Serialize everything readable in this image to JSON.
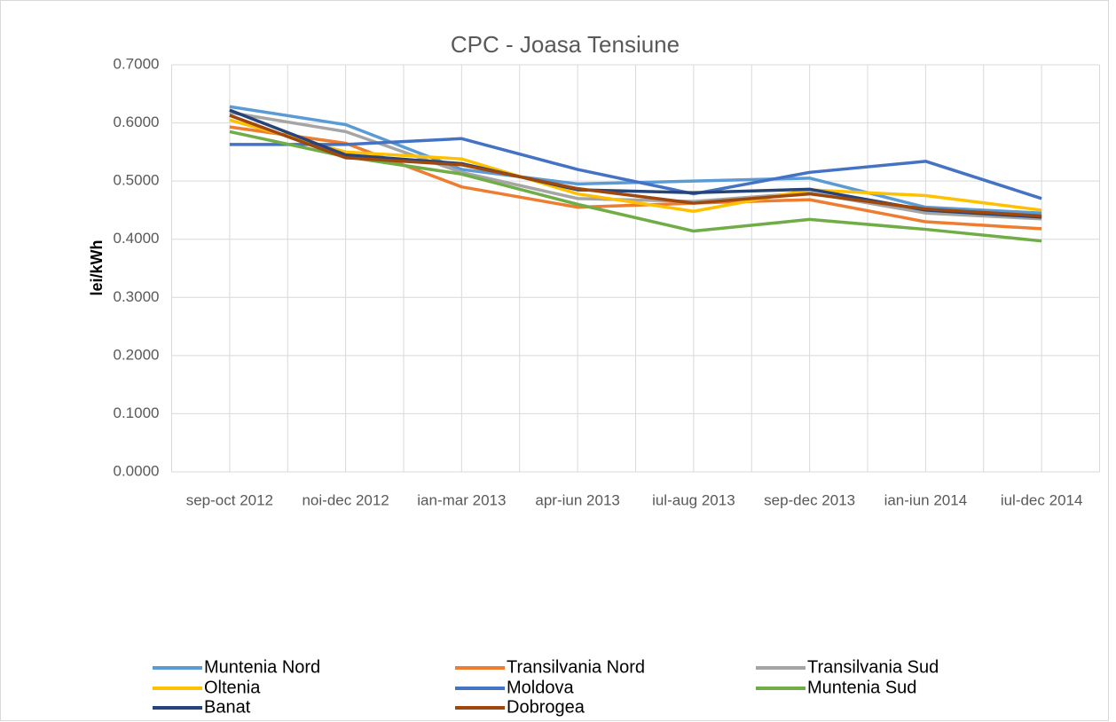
{
  "chart_data": {
    "type": "line",
    "title": "CPC - Joasa Tensiune",
    "y_label": "lei/kWh",
    "categories": [
      "sep-oct 2012",
      "noi-dec 2012",
      "ian-mar 2013",
      "apr-iun 2013",
      "iul-aug 2013",
      "sep-dec 2013",
      "ian-iun 2014",
      "iul-dec 2014"
    ],
    "ylim": [
      0,
      0.7
    ],
    "yticks": [
      {
        "value": 0,
        "label": "0.0000"
      },
      {
        "value": 0.1,
        "label": "0.1000"
      },
      {
        "value": 0.2,
        "label": "0.2000"
      },
      {
        "value": 0.3,
        "label": "0.3000"
      },
      {
        "value": 0.4,
        "label": "0.4000"
      },
      {
        "value": 0.5,
        "label": "0.5000"
      },
      {
        "value": 0.6,
        "label": "0.6000"
      },
      {
        "value": 0.7,
        "label": "0.7000"
      }
    ],
    "grid": true,
    "legend": "bottom",
    "series": [
      {
        "name": "Muntenia Nord",
        "color": "#5b9bd5",
        "values": [
          0.628,
          0.597,
          0.52,
          0.495,
          0.5,
          0.505,
          0.455,
          0.445
        ]
      },
      {
        "name": "Transilvania Nord",
        "color": "#ed7d31",
        "values": [
          0.593,
          0.565,
          0.49,
          0.455,
          0.462,
          0.468,
          0.43,
          0.418
        ]
      },
      {
        "name": "Transilvania Sud",
        "color": "#a5a5a5",
        "values": [
          0.618,
          0.585,
          0.515,
          0.47,
          0.465,
          0.48,
          0.445,
          0.435
        ]
      },
      {
        "name": "Oltenia",
        "color": "#ffc000",
        "values": [
          0.605,
          0.55,
          0.538,
          0.478,
          0.448,
          0.485,
          0.475,
          0.45
        ]
      },
      {
        "name": "Moldova",
        "color": "#4472c4",
        "values": [
          0.563,
          0.563,
          0.573,
          0.52,
          0.478,
          0.515,
          0.534,
          0.47
        ]
      },
      {
        "name": "Muntenia Sud",
        "color": "#70ad47",
        "values": [
          0.585,
          0.542,
          0.512,
          0.46,
          0.414,
          0.434,
          0.417,
          0.397
        ]
      },
      {
        "name": "Banat",
        "color": "#264478",
        "values": [
          0.622,
          0.545,
          0.53,
          0.485,
          0.48,
          0.486,
          0.45,
          0.438
        ]
      },
      {
        "name": "Dobrogea",
        "color": "#9e480e",
        "values": [
          0.613,
          0.54,
          0.528,
          0.487,
          0.462,
          0.478,
          0.452,
          0.44
        ]
      }
    ]
  }
}
